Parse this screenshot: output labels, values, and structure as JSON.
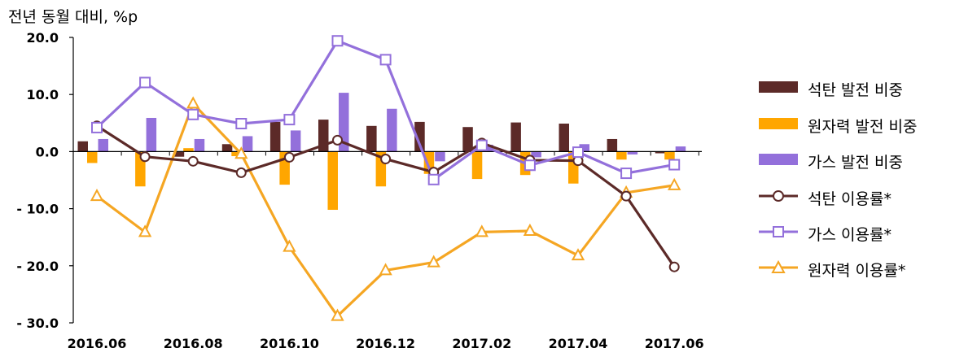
{
  "unit_label": "전년 동월 대비, %p",
  "chart_data": {
    "type": "bar+line",
    "ylim": [
      -30,
      20
    ],
    "yticks": [
      20,
      10,
      0,
      -10,
      -20,
      -30
    ],
    "ytick_labels": [
      "20.0",
      "10.0",
      "0.0",
      "- 10.0",
      "- 20.0",
      "- 30.0"
    ],
    "categories": [
      "2016.06",
      "2016.07",
      "2016.08",
      "2016.09",
      "2016.10",
      "2016.11",
      "2016.12",
      "2017.01",
      "2017.02",
      "2017.03",
      "2017.04",
      "2017.05",
      "2017.06"
    ],
    "xtick_labels": [
      "2016.06",
      "2016.08",
      "2016.10",
      "2016.12",
      "2017.02",
      "2017.04",
      "2017.06"
    ],
    "bar_series": [
      {
        "name": "석탄 발전 비중",
        "color": "#5c2a28",
        "values": [
          1.8,
          0.0,
          -0.9,
          1.3,
          5.2,
          5.6,
          4.5,
          5.2,
          4.3,
          5.1,
          4.9,
          2.2,
          -0.3
        ]
      },
      {
        "name": "원자력 발전 비중",
        "color": "#ffa600",
        "values": [
          -2.0,
          -6.1,
          0.6,
          -0.8,
          -5.8,
          -10.2,
          -6.1,
          -3.9,
          -4.8,
          -4.1,
          -5.6,
          -1.4,
          -1.4
        ]
      },
      {
        "name": "가스 발전 비중",
        "color": "#9370db",
        "values": [
          2.2,
          5.9,
          2.2,
          2.7,
          3.7,
          10.3,
          7.5,
          -1.7,
          1.2,
          -1.0,
          1.3,
          -0.5,
          0.9
        ]
      }
    ],
    "line_series": [
      {
        "name": "석탄 이용률*",
        "color": "#5c2a28",
        "marker": "circle",
        "values": [
          4.5,
          -0.9,
          -1.7,
          -3.7,
          -1.0,
          2.0,
          -1.3,
          -3.6,
          1.5,
          -1.5,
          -1.6,
          -7.8,
          -20.2
        ]
      },
      {
        "name": "가스 이용률*",
        "color": "#9370db",
        "marker": "square",
        "values": [
          4.2,
          12.1,
          6.5,
          4.9,
          5.6,
          19.4,
          16.1,
          -4.9,
          1.1,
          -2.4,
          -0.1,
          -3.8,
          -2.3
        ]
      },
      {
        "name": "원자력 이용률*",
        "color": "#f5a623",
        "marker": "triangle",
        "values": [
          -7.8,
          -14.1,
          8.4,
          -0.4,
          -16.7,
          -28.8,
          -20.8,
          -19.4,
          -14.1,
          -13.9,
          -18.2,
          -7.2,
          -5.9
        ]
      }
    ]
  }
}
